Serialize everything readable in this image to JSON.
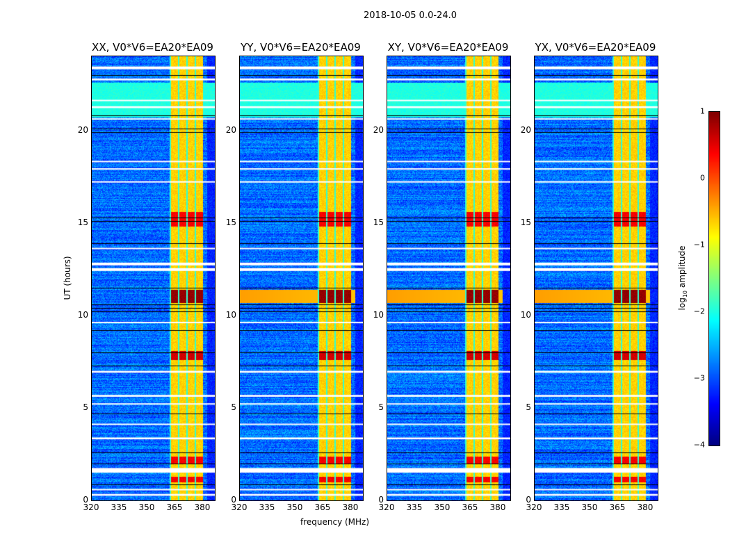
{
  "chart_data": {
    "type": "heatmap",
    "title": "2018-10-05 0.0-24.0",
    "xlabel": "frequency (MHz)",
    "ylabel": "UT (hours)",
    "xlim": [
      320,
      386.4
    ],
    "ylim": [
      0,
      24
    ],
    "xticks": [
      "320",
      "335",
      "350",
      "365",
      "380"
    ],
    "xtick_values": [
      320,
      335,
      350,
      365,
      380
    ],
    "yticks": [
      "0",
      "5",
      "10",
      "15",
      "20"
    ],
    "ytick_values": [
      0,
      5,
      10,
      15,
      20
    ],
    "panels": [
      {
        "title": "XX, V0*V6=EA20*EA09"
      },
      {
        "title": "YY, V0*V6=EA20*EA09"
      },
      {
        "title": "XY, V0*V6=EA20*EA09"
      },
      {
        "title": "YX, V0*V6=EA20*EA09"
      }
    ],
    "colorbar": {
      "label_prefix": "log",
      "label_sub": "10",
      "label_suffix": " amplitude",
      "range": [
        -4,
        1
      ],
      "ticks": [
        "1",
        "0",
        "−1",
        "−2",
        "−3",
        "−4"
      ],
      "tick_values": [
        1,
        0,
        -1,
        -2,
        -3,
        -4
      ],
      "colormap": "jet"
    },
    "rfi_band_mhz": [
      362,
      380
    ],
    "flagged_ut_hours": [
      [
        0.25,
        0.35
      ],
      [
        0.55,
        0.62
      ],
      [
        1.5,
        1.75
      ],
      [
        3.3,
        3.4
      ],
      [
        4.1,
        4.15
      ],
      [
        5.2,
        5.25
      ],
      [
        5.6,
        5.7
      ],
      [
        6.9,
        7.0
      ],
      [
        9.6,
        9.65
      ],
      [
        12.4,
        12.55
      ],
      [
        12.7,
        12.85
      ],
      [
        13.6,
        13.65
      ],
      [
        17.2,
        17.25
      ],
      [
        17.9,
        17.95
      ],
      [
        18.3,
        18.35
      ],
      [
        20.6,
        20.65
      ],
      [
        21.2,
        21.3
      ],
      [
        21.6,
        21.65
      ],
      [
        22.7,
        22.8
      ],
      [
        23.3,
        23.45
      ]
    ],
    "dark_ut_hours": [
      0.85,
      2.0,
      2.6,
      4.7,
      7.3,
      8.0,
      9.2,
      10.2,
      10.4,
      10.6,
      11.5,
      13.9,
      15.1,
      15.3,
      19.9,
      20.1,
      20.8,
      23.0
    ],
    "bright_ut_hours": [
      [
        10.7,
        11.4,
        0.8
      ],
      [
        14.8,
        15.6,
        0.3
      ],
      [
        7.6,
        8.1,
        0.5
      ],
      [
        2.0,
        2.4,
        0.3
      ],
      [
        1.0,
        1.3,
        0.3
      ]
    ],
    "bright_region_ut": [
      20.7,
      22.6
    ]
  }
}
